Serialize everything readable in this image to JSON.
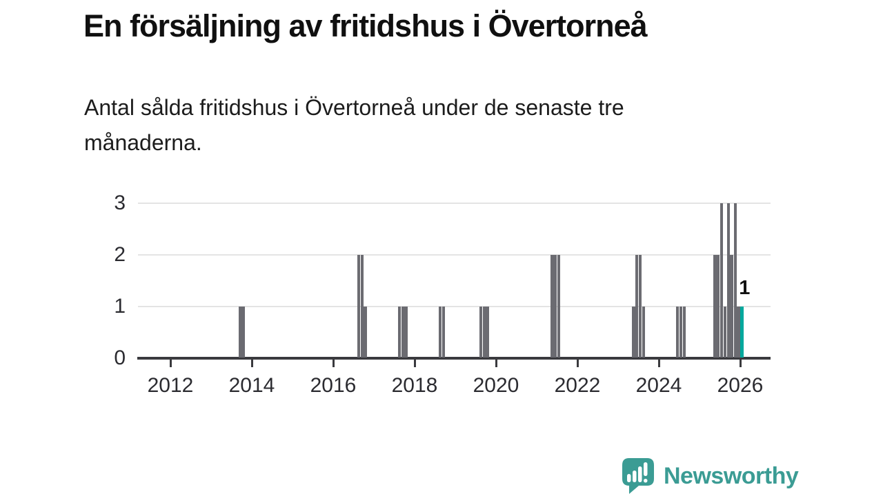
{
  "header": {
    "title": "En försäljning av fritidshus i Övertorneå",
    "subtitle": "Antal sålda fritidshus i Övertorneå under de senaste tre\nmånaderna."
  },
  "chart_data": {
    "type": "bar",
    "title": "En försäljning av fritidshus i Övertorneå",
    "subtitle": "Antal sålda fritidshus i Övertorneå under de senaste tre månaderna.",
    "xlabel": "",
    "ylabel": "",
    "ylim": [
      0,
      3
    ],
    "yticks": [
      "0",
      "1",
      "2",
      "3"
    ],
    "xticks": [
      "2012",
      "2014",
      "2016",
      "2018",
      "2020",
      "2022",
      "2024",
      "2026"
    ],
    "xtick_years": [
      2012,
      2014,
      2016,
      2018,
      2020,
      2022,
      2024,
      2026
    ],
    "grid": true,
    "legend": "none",
    "colors": {
      "bar": "#6b6b71",
      "highlight": "#00a89d",
      "axis": "#3a3a3e",
      "gridline": "#e4e4e4"
    },
    "bars": [
      {
        "x": 2013.71,
        "v": 1
      },
      {
        "x": 2013.79,
        "v": 1
      },
      {
        "x": 2016.63,
        "v": 2
      },
      {
        "x": 2016.71,
        "v": 2
      },
      {
        "x": 2016.79,
        "v": 1
      },
      {
        "x": 2017.63,
        "v": 1
      },
      {
        "x": 2017.71,
        "v": 1
      },
      {
        "x": 2017.79,
        "v": 1
      },
      {
        "x": 2018.63,
        "v": 1
      },
      {
        "x": 2018.71,
        "v": 1
      },
      {
        "x": 2019.63,
        "v": 1
      },
      {
        "x": 2019.71,
        "v": 1
      },
      {
        "x": 2019.79,
        "v": 1
      },
      {
        "x": 2021.38,
        "v": 2
      },
      {
        "x": 2021.46,
        "v": 2
      },
      {
        "x": 2021.54,
        "v": 2
      },
      {
        "x": 2023.38,
        "v": 1
      },
      {
        "x": 2023.46,
        "v": 2
      },
      {
        "x": 2023.54,
        "v": 2
      },
      {
        "x": 2023.63,
        "v": 1
      },
      {
        "x": 2024.46,
        "v": 1
      },
      {
        "x": 2024.54,
        "v": 1
      },
      {
        "x": 2024.63,
        "v": 1
      },
      {
        "x": 2025.38,
        "v": 2
      },
      {
        "x": 2025.46,
        "v": 2
      },
      {
        "x": 2025.54,
        "v": 3
      },
      {
        "x": 2025.63,
        "v": 1
      },
      {
        "x": 2025.71,
        "v": 3
      },
      {
        "x": 2025.79,
        "v": 2
      },
      {
        "x": 2025.88,
        "v": 3
      },
      {
        "x": 2025.96,
        "v": 1
      },
      {
        "x": 2026.04,
        "v": 1,
        "highlight": true,
        "label": "1"
      }
    ]
  },
  "footer": {
    "brand": "Newsworthy",
    "logo_color": "#3b9c94"
  }
}
